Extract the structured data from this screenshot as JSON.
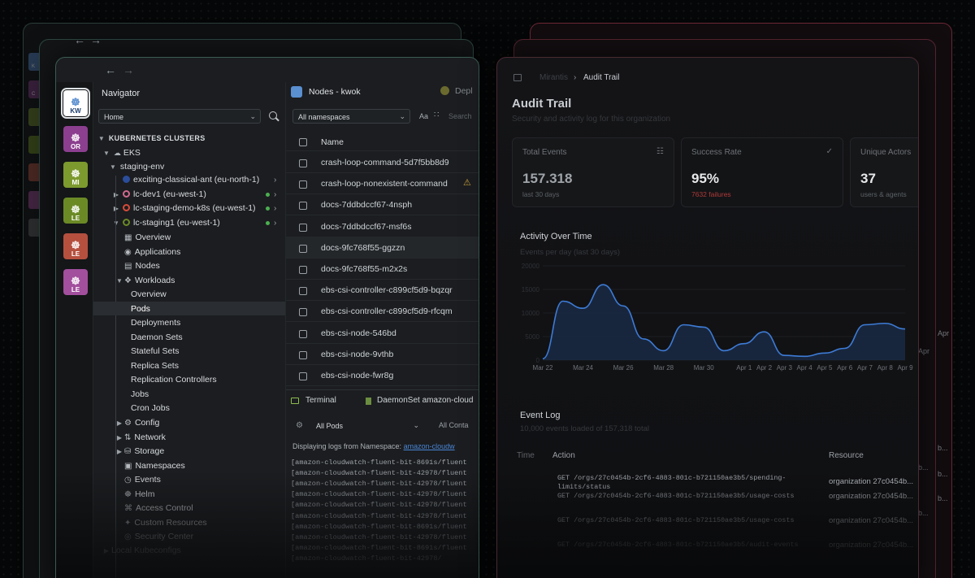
{
  "navigator": {
    "title": "Navigator",
    "home_select": "Home",
    "section_header": "KUBERNETES CLUSTERS",
    "provider": "EKS",
    "env": "staging-env",
    "clusters": [
      "exciting-classical-ant (eu-north-1)",
      "lc-dev1 (eu-west-1)",
      "lc-staging-demo-k8s (eu-west-1)",
      "lc-staging1 (eu-west-1)"
    ],
    "items": [
      "Overview",
      "Applications",
      "Nodes",
      "Workloads"
    ],
    "workloads": [
      "Overview",
      "Pods",
      "Deployments",
      "Daemon Sets",
      "Stateful Sets",
      "Replica Sets",
      "Replication Controllers",
      "Jobs",
      "Cron Jobs"
    ],
    "more": [
      "Config",
      "Network",
      "Storage",
      "Namespaces",
      "Events",
      "Helm",
      "Access Control",
      "Custom Resources",
      "Security Center"
    ],
    "local": "Local Kubeconfigs"
  },
  "rail": {
    "clusters": [
      {
        "abbr": "KW",
        "color": "#5a8fd0"
      },
      {
        "abbr": "OR",
        "color": "#8c3f8f"
      },
      {
        "abbr": "MI",
        "color": "#7d9a2e"
      },
      {
        "abbr": "LE",
        "color": "#6b8a26"
      },
      {
        "abbr": "LE",
        "color": "#b5503f"
      },
      {
        "abbr": "LE",
        "color": "#a24f9d"
      }
    ]
  },
  "ghost_rail": [
    "K",
    "C",
    "",
    "",
    "",
    "",
    ""
  ],
  "pods_list": {
    "tab_title": "Nodes - kwok",
    "tab2": "Depl",
    "namespace": "All namespaces",
    "aa": "Aa",
    "search": "Search",
    "col_name": "Name",
    "rows": [
      "crash-loop-command-5d7f5bb8d9",
      "crash-loop-nonexistent-command",
      "docs-7ddbdccf67-4nsph",
      "docs-7ddbdccf67-msf6s",
      "docs-9fc768f55-ggzzn",
      "docs-9fc768f55-m2x2s",
      "ebs-csi-controller-c899cf5d9-bqzqr",
      "ebs-csi-controller-c899cf5d9-rfcqm",
      "ebs-csi-node-546bd",
      "ebs-csi-node-9vthb",
      "ebs-csi-node-fwr8g"
    ]
  },
  "terminal": {
    "tab1": "Terminal",
    "tab2": "DaemonSet amazon-cloud",
    "pods_select": "All Pods",
    "containers": "All Conta",
    "info": "Displaying logs from Namespace:",
    "info_link": "amazon-cloudw",
    "lines": [
      "[amazon-cloudwatch-fluent-bit-8691s/fluent",
      "[amazon-cloudwatch-fluent-bit-42978/fluent",
      "[amazon-cloudwatch-fluent-bit-42978/fluent",
      "[amazon-cloudwatch-fluent-bit-42978/fluent",
      "[amazon-cloudwatch-fluent-bit-42978/fluent",
      "[amazon-cloudwatch-fluent-bit-42978/fluent",
      "[amazon-cloudwatch-fluent-bit-8691s/fluent",
      "[amazon-cloudwatch-fluent-bit-42978/fluent",
      "[amazon-cloudwatch-fluent-bit-8691s/fluent",
      "[amazon-cloudwatch-fluent-bit-42978/"
    ]
  },
  "audit": {
    "breadcrumb_parent": "Mirantis",
    "breadcrumb_current": "Audit Trail",
    "title": "Audit Trail",
    "subtitle": "Security and activity log for this organization",
    "cards": [
      {
        "label": "Total Events",
        "value": "157.318",
        "sub": "last 30 days"
      },
      {
        "label": "Success Rate",
        "value": "95%",
        "sub": "7632 failures"
      },
      {
        "label": "Unique Actors",
        "value": "37",
        "sub": "users & agents"
      }
    ],
    "activity_title": "Activity Over Time",
    "activity_sub": "Events per day (last 30 days)",
    "event_log": "Event Log",
    "event_log_sub": "10,000 events loaded of 157,318 total",
    "cols": [
      "Time",
      "Action",
      "Resource"
    ],
    "rows": [
      {
        "action": "GET /orgs/27c0454b-2cf6-4883-801c-b721150ae3b5/spending-limits/status",
        "resource": "organization 27c0454b..."
      },
      {
        "action": "GET /orgs/27c0454b-2cf6-4883-801c-b721150ae3b5/usage-costs",
        "resource": "organization 27c0454b..."
      },
      {
        "action": "GET /orgs/27c0454b-2cf6-4883-801c-b721150ae3b5/usage-costs",
        "resource": "organization 27c0454b..."
      },
      {
        "action": "GET /orgs/27c0454b-2cf6-4883-801c-b721150ae3b5/audit-events",
        "resource": "organization 27c0454b..."
      }
    ],
    "ghost_side": [
      "Apr",
      "Apr",
      "b...",
      "b...",
      "b...",
      "b...",
      "b..."
    ]
  },
  "chart_data": {
    "type": "area",
    "title": "Activity Over Time",
    "subtitle": "Events per day (last 30 days)",
    "x": [
      "Mar 22",
      "Mar 23",
      "Mar 24",
      "Mar 25",
      "Mar 26",
      "Mar 27",
      "Mar 28",
      "Mar 29",
      "Mar 30",
      "Mar 31",
      "Apr 1",
      "Apr 2",
      "Apr 3",
      "Apr 4",
      "Apr 5",
      "Apr 6",
      "Apr 7",
      "Apr 8",
      "Apr 9"
    ],
    "tick_labels": [
      "Mar 22",
      "Mar 24",
      "Mar 26",
      "Mar 28",
      "Mar 30",
      "Apr 1",
      "Apr 2",
      "Apr 3",
      "Apr 4",
      "Apr 5",
      "Apr 6",
      "Apr 7",
      "Apr 8",
      "Apr 9"
    ],
    "y_ticks": [
      "20000",
      "15000",
      "10000",
      "5000",
      "0"
    ],
    "values": [
      300,
      12500,
      11000,
      16000,
      11500,
      4500,
      2000,
      7500,
      7000,
      2000,
      3500,
      6000,
      1000,
      800,
      1500,
      2500,
      7500,
      7800,
      6600
    ],
    "ylim": [
      0,
      20000
    ],
    "grid": true,
    "color": "#3d7bd6"
  }
}
